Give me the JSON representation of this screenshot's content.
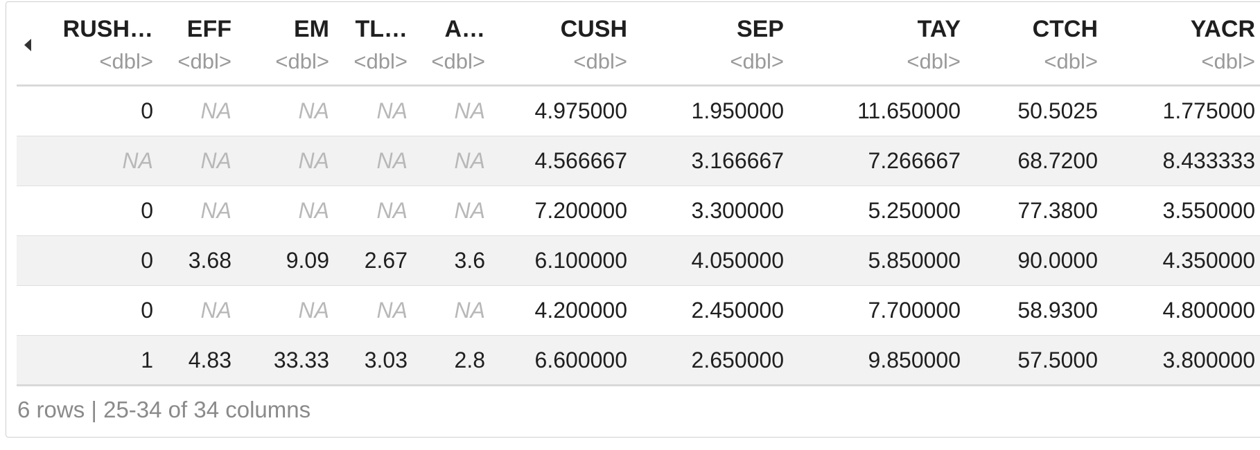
{
  "table": {
    "columns": [
      {
        "name": "RUSH…",
        "type": "<dbl>"
      },
      {
        "name": "EFF",
        "type": "<dbl>"
      },
      {
        "name": "EM",
        "type": "<dbl>"
      },
      {
        "name": "TL…",
        "type": "<dbl>"
      },
      {
        "name": "A…",
        "type": "<dbl>"
      },
      {
        "name": "CUSH",
        "type": "<dbl>"
      },
      {
        "name": "SEP",
        "type": "<dbl>"
      },
      {
        "name": "TAY",
        "type": "<dbl>"
      },
      {
        "name": "CTCH",
        "type": "<dbl>"
      },
      {
        "name": "YACR",
        "type": "<dbl>"
      }
    ],
    "rows": [
      [
        "0",
        "NA",
        "NA",
        "NA",
        "NA",
        "4.975000",
        "1.950000",
        "11.650000",
        "50.5025",
        "1.775000"
      ],
      [
        "NA",
        "NA",
        "NA",
        "NA",
        "NA",
        "4.566667",
        "3.166667",
        "7.266667",
        "68.7200",
        "8.433333"
      ],
      [
        "0",
        "NA",
        "NA",
        "NA",
        "NA",
        "7.200000",
        "3.300000",
        "5.250000",
        "77.3800",
        "3.550000"
      ],
      [
        "0",
        "3.68",
        "9.09",
        "2.67",
        "3.6",
        "6.100000",
        "4.050000",
        "5.850000",
        "90.0000",
        "4.350000"
      ],
      [
        "0",
        "NA",
        "NA",
        "NA",
        "NA",
        "4.200000",
        "2.450000",
        "7.700000",
        "58.9300",
        "4.800000"
      ],
      [
        "1",
        "4.83",
        "33.33",
        "3.03",
        "2.8",
        "6.600000",
        "2.650000",
        "9.850000",
        "57.5000",
        "3.800000"
      ]
    ]
  },
  "footer": {
    "summary": "6 rows | 25-34 of 34 columns"
  },
  "icons": {
    "previous_columns": "triangle-left-icon"
  },
  "colors": {
    "na_text": "#b8b8b8",
    "type_text": "#9a9a9a",
    "stripe": "#f2f2f2"
  }
}
